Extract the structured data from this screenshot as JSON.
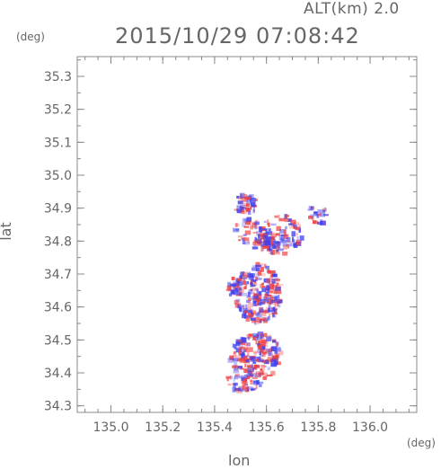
{
  "header": {
    "altitude_label": "ALT(km) 2.0",
    "timestamp": "2015/10/29 07:08:42"
  },
  "chart_data": {
    "type": "heatmap",
    "title": "2015/10/29 07:08:42",
    "subtitle": "ALT(km) 2.0",
    "xlabel": "lon",
    "ylabel": "lat",
    "x_unit": "(deg)",
    "y_unit": "(deg)",
    "xlim": [
      134.87,
      136.18
    ],
    "ylim": [
      34.28,
      35.36
    ],
    "x_ticks": [
      "135.0",
      "135.2",
      "135.4",
      "135.6",
      "135.8",
      "136.0"
    ],
    "x_tick_values": [
      135.0,
      135.2,
      135.4,
      135.6,
      135.8,
      136.0
    ],
    "y_ticks": [
      "34.3",
      "34.4",
      "34.5",
      "34.6",
      "34.7",
      "34.8",
      "34.9",
      "35.0",
      "35.1",
      "35.2",
      "35.3"
    ],
    "y_tick_values": [
      34.3,
      34.4,
      34.5,
      34.6,
      34.7,
      34.8,
      34.9,
      35.0,
      35.1,
      35.2,
      35.3
    ],
    "colors": {
      "positive": "#f04040",
      "negative": "#4040f0",
      "frame": "#888888"
    },
    "regions": [
      {
        "lon": 135.52,
        "lat": 34.91,
        "dlon": 0.05,
        "dlat": 0.03,
        "density": 0.5
      },
      {
        "lon": 135.55,
        "lat": 34.83,
        "dlon": 0.08,
        "dlat": 0.04,
        "density": 0.35
      },
      {
        "lon": 135.66,
        "lat": 34.82,
        "dlon": 0.08,
        "dlat": 0.06,
        "density": 0.45
      },
      {
        "lon": 135.6,
        "lat": 34.79,
        "dlon": 0.05,
        "dlat": 0.03,
        "density": 0.6
      },
      {
        "lon": 135.8,
        "lat": 34.88,
        "dlon": 0.04,
        "dlat": 0.03,
        "density": 0.3
      },
      {
        "lon": 135.57,
        "lat": 34.64,
        "dlon": 0.09,
        "dlat": 0.09,
        "density": 0.75
      },
      {
        "lon": 135.48,
        "lat": 34.66,
        "dlon": 0.03,
        "dlat": 0.03,
        "density": 0.5
      },
      {
        "lon": 135.56,
        "lat": 34.45,
        "dlon": 0.1,
        "dlat": 0.07,
        "density": 0.7
      },
      {
        "lon": 135.51,
        "lat": 34.37,
        "dlon": 0.07,
        "dlat": 0.03,
        "density": 0.45
      }
    ]
  }
}
